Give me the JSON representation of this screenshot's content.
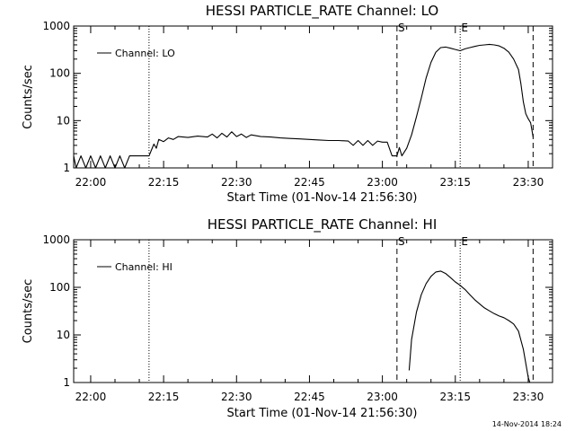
{
  "colors": {
    "background": "#ffffff",
    "foreground": "#000000"
  },
  "timestamp": "14-Nov-2014 18:24",
  "chart_data": [
    {
      "type": "line",
      "title": "HESSI PARTICLE_RATE Channel: LO",
      "xlabel": "Start Time (01-Nov-14 21:56:30)",
      "ylabel": "Counts/sec",
      "yscale": "log",
      "x_unit": "time (HH:MM, 01-Nov-14)",
      "xlim": [
        "21:56:30",
        "23:35:00"
      ],
      "ylim": [
        1,
        1000
      ],
      "x_tick_labels": [
        "22:00",
        "22:15",
        "22:30",
        "22:45",
        "23:00",
        "23:15",
        "23:30"
      ],
      "y_tick_labels": [
        "1",
        "10",
        "100",
        "1000"
      ],
      "grid": false,
      "legend": {
        "position": "top-left",
        "entries": [
          "Channel: LO"
        ]
      },
      "markers": [
        {
          "time": "22:12",
          "style": "dotted",
          "label": ""
        },
        {
          "time": "23:03",
          "style": "dashed",
          "label": "S"
        },
        {
          "time": "23:16",
          "style": "dotted",
          "label": "E"
        },
        {
          "time": "23:31",
          "style": "dashed",
          "label": ""
        }
      ],
      "series": [
        {
          "name": "Channel: LO",
          "points": [
            [
              "21:56:30",
              1.8
            ],
            [
              "21:57:00",
              1.0
            ],
            [
              "21:58:00",
              1.8
            ],
            [
              "21:59:00",
              1.0
            ],
            [
              "22:00:00",
              1.8
            ],
            [
              "22:01:00",
              1.0
            ],
            [
              "22:02:00",
              1.8
            ],
            [
              "22:03:00",
              1.0
            ],
            [
              "22:04:00",
              1.8
            ],
            [
              "22:05:00",
              1.0
            ],
            [
              "22:06:00",
              1.8
            ],
            [
              "22:07:00",
              1.0
            ],
            [
              "22:08:00",
              1.8
            ],
            [
              "22:10:00",
              1.8
            ],
            [
              "22:12:00",
              1.8
            ],
            [
              "22:12:30",
              2.4
            ],
            [
              "22:13:00",
              3.2
            ],
            [
              "22:13:30",
              2.6
            ],
            [
              "22:14:00",
              4.0
            ],
            [
              "22:15:00",
              3.6
            ],
            [
              "22:16:00",
              4.3
            ],
            [
              "22:17:00",
              4.0
            ],
            [
              "22:18:00",
              4.6
            ],
            [
              "22:20:00",
              4.4
            ],
            [
              "22:22:00",
              4.7
            ],
            [
              "22:24:00",
              4.5
            ],
            [
              "22:25:00",
              5.2
            ],
            [
              "22:26:00",
              4.3
            ],
            [
              "22:27:00",
              5.4
            ],
            [
              "22:28:00",
              4.5
            ],
            [
              "22:29:00",
              5.8
            ],
            [
              "22:30:00",
              4.6
            ],
            [
              "22:31:00",
              5.2
            ],
            [
              "22:32:00",
              4.4
            ],
            [
              "22:33:00",
              5.0
            ],
            [
              "22:35:00",
              4.6
            ],
            [
              "22:37:00",
              4.5
            ],
            [
              "22:39:00",
              4.3
            ],
            [
              "22:41:00",
              4.2
            ],
            [
              "22:43:00",
              4.1
            ],
            [
              "22:45:00",
              4.0
            ],
            [
              "22:47:00",
              3.9
            ],
            [
              "22:49:00",
              3.8
            ],
            [
              "22:51:00",
              3.8
            ],
            [
              "22:53:00",
              3.7
            ],
            [
              "22:54:00",
              3.0
            ],
            [
              "22:55:00",
              3.8
            ],
            [
              "22:56:00",
              3.0
            ],
            [
              "22:57:00",
              3.8
            ],
            [
              "22:58:00",
              3.0
            ],
            [
              "22:59:00",
              3.7
            ],
            [
              "23:00:00",
              3.5
            ],
            [
              "23:01:00",
              3.5
            ],
            [
              "23:02:00",
              1.8
            ],
            [
              "23:03:00",
              1.8
            ],
            [
              "23:03:30",
              2.7
            ],
            [
              "23:04:00",
              1.8
            ],
            [
              "23:05:00",
              2.6
            ],
            [
              "23:06:00",
              5.0
            ],
            [
              "23:07:00",
              12
            ],
            [
              "23:08:00",
              30
            ],
            [
              "23:09:00",
              80
            ],
            [
              "23:10:00",
              170
            ],
            [
              "23:11:00",
              280
            ],
            [
              "23:12:00",
              350
            ],
            [
              "23:13:00",
              360
            ],
            [
              "23:14:00",
              340
            ],
            [
              "23:15:00",
              320
            ],
            [
              "23:16:00",
              300
            ],
            [
              "23:17:00",
              330
            ],
            [
              "23:18:00",
              350
            ],
            [
              "23:19:00",
              370
            ],
            [
              "23:20:00",
              390
            ],
            [
              "23:21:00",
              400
            ],
            [
              "23:22:00",
              410
            ],
            [
              "23:23:00",
              400
            ],
            [
              "23:24:00",
              380
            ],
            [
              "23:25:00",
              340
            ],
            [
              "23:26:00",
              280
            ],
            [
              "23:27:00",
              200
            ],
            [
              "23:28:00",
              120
            ],
            [
              "23:28:30",
              60
            ],
            [
              "23:29:00",
              25
            ],
            [
              "23:29:30",
              14
            ],
            [
              "23:30:00",
              11
            ],
            [
              "23:30:30",
              9
            ],
            [
              "23:31:00",
              4.5
            ]
          ]
        }
      ]
    },
    {
      "type": "line",
      "title": "HESSI PARTICLE_RATE Channel: HI",
      "xlabel": "Start Time (01-Nov-14 21:56:30)",
      "ylabel": "Counts/sec",
      "yscale": "log",
      "x_unit": "time (HH:MM, 01-Nov-14)",
      "xlim": [
        "21:56:30",
        "23:35:00"
      ],
      "ylim": [
        1,
        1000
      ],
      "x_tick_labels": [
        "22:00",
        "22:15",
        "22:30",
        "22:45",
        "23:00",
        "23:15",
        "23:30"
      ],
      "y_tick_labels": [
        "1",
        "10",
        "100",
        "1000"
      ],
      "grid": false,
      "legend": {
        "position": "top-left",
        "entries": [
          "Channel: HI"
        ]
      },
      "markers": [
        {
          "time": "22:12",
          "style": "dotted",
          "label": ""
        },
        {
          "time": "23:03",
          "style": "dashed",
          "label": "S"
        },
        {
          "time": "23:16",
          "style": "dotted",
          "label": "E"
        },
        {
          "time": "23:31",
          "style": "dashed",
          "label": ""
        }
      ],
      "series": [
        {
          "name": "Channel: HI",
          "points": [
            [
              "23:05:30",
              1.8
            ],
            [
              "23:06:00",
              8
            ],
            [
              "23:07:00",
              30
            ],
            [
              "23:08:00",
              70
            ],
            [
              "23:09:00",
              120
            ],
            [
              "23:10:00",
              170
            ],
            [
              "23:11:00",
              210
            ],
            [
              "23:12:00",
              220
            ],
            [
              "23:13:00",
              195
            ],
            [
              "23:14:00",
              160
            ],
            [
              "23:15:00",
              130
            ],
            [
              "23:16:00",
              110
            ],
            [
              "23:17:00",
              90
            ],
            [
              "23:18:00",
              70
            ],
            [
              "23:19:00",
              55
            ],
            [
              "23:20:00",
              45
            ],
            [
              "23:21:00",
              37
            ],
            [
              "23:22:00",
              32
            ],
            [
              "23:23:00",
              28
            ],
            [
              "23:24:00",
              25
            ],
            [
              "23:25:00",
              23
            ],
            [
              "23:26:00",
              20
            ],
            [
              "23:27:00",
              17
            ],
            [
              "23:28:00",
              12
            ],
            [
              "23:29:00",
              5
            ],
            [
              "23:30:00",
              1.3
            ],
            [
              "23:30:20",
              1.0
            ]
          ]
        }
      ]
    }
  ]
}
